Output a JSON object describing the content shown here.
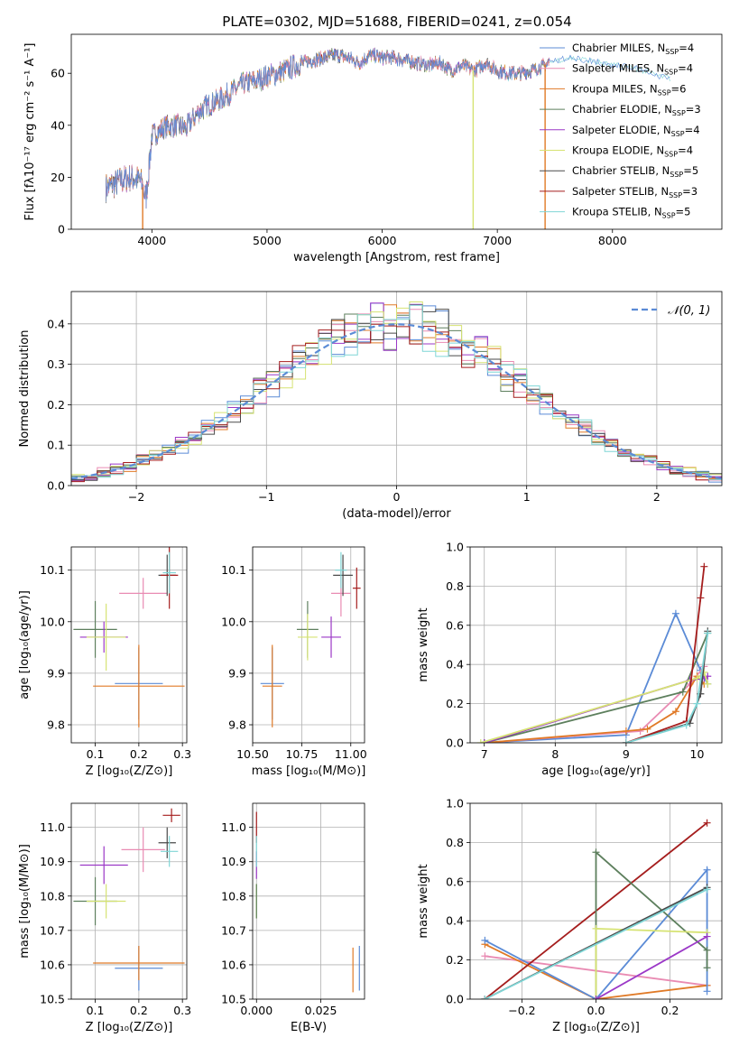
{
  "figure": {
    "title": "PLATE=0302, MJD=51688, FIBERID=0241, z=0.054"
  },
  "colors": {
    "Chabrier MILES": "#5b8bd6",
    "Salpeter MILES": "#e98bb3",
    "Kroupa MILES": "#e07a27",
    "Chabrier ELODIE": "#5d7f5d",
    "Salpeter ELODIE": "#9b38c7",
    "Kroupa ELODIE": "#d6e373",
    "Chabrier STELIB": "#4a4a4a",
    "Salpeter STELIB": "#a51d1d",
    "Kroupa STELIB": "#7fd6d6"
  },
  "chart_data": [
    {
      "id": "spectrum",
      "type": "line",
      "title": "PLATE=0302, MJD=51688, FIBERID=0241, z=0.054",
      "xlabel": "wavelength [Angstrom, rest frame]",
      "ylabel": "Flux [fλ10⁻¹⁷ erg cm⁻² s⁻¹ A⁻¹]",
      "xlim": [
        3300,
        8950
      ],
      "ylim": [
        0,
        75
      ],
      "xticks": [
        4000,
        5000,
        6000,
        7000,
        8000
      ],
      "yticks": [
        0,
        20,
        40,
        60
      ],
      "grid": false,
      "legend_position": "top-right",
      "legend": [
        "Chabrier MILES, N_SSP=4",
        "Salpeter MILES, N_SSP=4",
        "Kroupa MILES, N_SSP=6",
        "Chabrier ELODIE, N_SSP=3",
        "Salpeter ELODIE, N_SSP=4",
        "Kroupa ELODIE, N_SSP=4",
        "Chabrier STELIB, N_SSP=5",
        "Salpeter STELIB, N_SSP=3",
        "Kroupa STELIB, N_SSP=5"
      ],
      "continuum": {
        "x": [
          3600,
          3700,
          3800,
          3900,
          3950,
          4000,
          4100,
          4200,
          4300,
          4400,
          4500,
          4600,
          4700,
          4800,
          4900,
          5000,
          5100,
          5200,
          5300,
          5400,
          5500,
          5600,
          5700,
          5800,
          5900,
          6000,
          6100,
          6200,
          6300,
          6400,
          6500,
          6600,
          6700,
          6800,
          6900,
          7000,
          7100,
          7200,
          7300,
          7400,
          7450
        ],
        "y": [
          16,
          18,
          20,
          19,
          12,
          36,
          39,
          40,
          39,
          45,
          48,
          50,
          53,
          56,
          57,
          59,
          60,
          62,
          64,
          65,
          66,
          67,
          66,
          64,
          67,
          66,
          66,
          65,
          64,
          63,
          64,
          61,
          63,
          61,
          64,
          61,
          60,
          60,
          61,
          63,
          64
        ]
      },
      "kroupa_stelib_extension": {
        "x": [
          7450,
          7600,
          7800,
          8000,
          8200,
          8400,
          8500
        ],
        "y": [
          64,
          66,
          65,
          63,
          62,
          59,
          58
        ]
      },
      "spikes_to_zero": [
        3920,
        6790,
        7415
      ]
    },
    {
      "id": "residuals",
      "type": "histogram",
      "xlabel": "(data-model)/error",
      "ylabel": "Normed distribution",
      "xlim": [
        -2.5,
        2.5
      ],
      "ylim": [
        0,
        0.48
      ],
      "xticks": [
        -2,
        -1,
        0,
        1,
        2
      ],
      "yticks": [
        0.0,
        0.1,
        0.2,
        0.3,
        0.4
      ],
      "grid": true,
      "legend_position": "top-right",
      "legend": [
        "𝒩(0, 1)"
      ],
      "bin_width": 0.1,
      "reference_curve": "gaussian N(0,1)"
    },
    {
      "id": "age_vs_Z",
      "type": "scatter",
      "xlabel": "Z [log₁₀(Z/Z⊙)]",
      "ylabel": "age  [log₁₀(age/yr)]",
      "xlim": [
        0.045,
        0.31
      ],
      "ylim": [
        9.765,
        10.145
      ],
      "xticks": [
        0.1,
        0.2,
        0.3
      ],
      "yticks": [
        9.8,
        9.9,
        10.0,
        10.1
      ],
      "grid": true,
      "points": [
        {
          "model": "Chabrier MILES",
          "x": 0.2,
          "xerr": 0.055,
          "y": 9.88,
          "yerr": 0.07
        },
        {
          "model": "Salpeter MILES",
          "x": 0.21,
          "xerr": 0.055,
          "y": 10.055,
          "yerr": 0.03
        },
        {
          "model": "Kroupa MILES",
          "x": 0.2,
          "xerr": 0.105,
          "y": 9.875,
          "yerr": 0.08
        },
        {
          "model": "Chabrier ELODIE",
          "x": 0.1,
          "xerr": 0.05,
          "y": 9.985,
          "yerr": 0.055
        },
        {
          "model": "Salpeter ELODIE",
          "x": 0.12,
          "xerr": 0.055,
          "y": 9.97,
          "yerr": 0.03
        },
        {
          "model": "Kroupa ELODIE",
          "x": 0.125,
          "xerr": 0.045,
          "y": 9.97,
          "yerr": 0.065
        },
        {
          "model": "Chabrier STELIB",
          "x": 0.265,
          "xerr": 0.02,
          "y": 10.09,
          "yerr": 0.04
        },
        {
          "model": "Salpeter STELIB",
          "x": 0.27,
          "xerr": 0.02,
          "y": 10.09,
          "yerr": 0.065
        },
        {
          "model": "Kroupa STELIB",
          "x": 0.27,
          "xerr": 0.015,
          "y": 10.095,
          "yerr": 0.04
        }
      ]
    },
    {
      "id": "age_vs_mass",
      "type": "scatter",
      "xlabel": "mass [log₁₀(M/M⊙)]",
      "ylabel": "",
      "xlim": [
        10.5,
        11.07
      ],
      "ylim": [
        9.765,
        10.145
      ],
      "xticks": [
        10.5,
        10.75,
        11.0
      ],
      "xticklabels": [
        "10.50",
        "10.75",
        "11.00"
      ],
      "yticks": [
        9.8,
        9.9,
        10.0,
        10.1
      ],
      "grid": true,
      "points": [
        {
          "model": "Chabrier MILES",
          "x": 10.6,
          "xerr": 0.06,
          "y": 9.88,
          "yerr": 0.07
        },
        {
          "model": "Salpeter MILES",
          "x": 10.95,
          "xerr": 0.05,
          "y": 10.055,
          "yerr": 0.045
        },
        {
          "model": "Kroupa MILES",
          "x": 10.6,
          "xerr": 0.05,
          "y": 9.875,
          "yerr": 0.08
        },
        {
          "model": "Chabrier ELODIE",
          "x": 10.78,
          "xerr": 0.055,
          "y": 9.985,
          "yerr": 0.055
        },
        {
          "model": "Salpeter ELODIE",
          "x": 10.9,
          "xerr": 0.05,
          "y": 9.97,
          "yerr": 0.04
        },
        {
          "model": "Kroupa ELODIE",
          "x": 10.78,
          "xerr": 0.05,
          "y": 9.97,
          "yerr": 0.045
        },
        {
          "model": "Chabrier STELIB",
          "x": 10.96,
          "xerr": 0.05,
          "y": 10.09,
          "yerr": 0.04
        },
        {
          "model": "Salpeter STELIB",
          "x": 11.03,
          "xerr": 0.02,
          "y": 10.065,
          "yerr": 0.04
        },
        {
          "model": "Kroupa STELIB",
          "x": 10.95,
          "xerr": 0.03,
          "y": 10.1,
          "yerr": 0.035
        }
      ]
    },
    {
      "id": "weight_vs_age",
      "type": "line",
      "xlabel": "age  [log₁₀(age/yr)]",
      "ylabel": "mass weight",
      "xlim": [
        6.8,
        10.35
      ],
      "ylim": [
        0,
        1.0
      ],
      "xticks": [
        7,
        8,
        9,
        10
      ],
      "yticks": [
        0.0,
        0.2,
        0.4,
        0.6,
        0.8,
        1.0
      ],
      "grid": true,
      "series": [
        {
          "model": "Chabrier MILES",
          "x": [
            7.0,
            9.0,
            9.7,
            10.05,
            10.15
          ],
          "y": [
            0.0,
            0.04,
            0.66,
            0.37,
            0.3
          ]
        },
        {
          "model": "Salpeter MILES",
          "x": [
            7.0,
            9.2,
            9.9,
            10.1
          ],
          "y": [
            0.0,
            0.06,
            0.3,
            0.39
          ]
        },
        {
          "model": "Kroupa MILES",
          "x": [
            7.0,
            9.0,
            9.3,
            9.7,
            10.0,
            10.1
          ],
          "y": [
            0.0,
            0.06,
            0.07,
            0.16,
            0.34,
            0.3
          ]
        },
        {
          "model": "Chabrier ELODIE",
          "x": [
            7.0,
            9.8,
            10.15
          ],
          "y": [
            0.0,
            0.26,
            0.56
          ]
        },
        {
          "model": "Salpeter ELODIE",
          "x": [
            7.0,
            9.9,
            10.1,
            10.15
          ],
          "y": [
            0.0,
            0.32,
            0.33,
            0.34
          ]
        },
        {
          "model": "Kroupa ELODIE",
          "x": [
            6.95,
            10.0,
            10.1,
            10.15
          ],
          "y": [
            0.0,
            0.33,
            0.36,
            0.3
          ]
        },
        {
          "model": "Chabrier STELIB",
          "x": [
            9.0,
            9.9,
            10.05,
            10.15
          ],
          "y": [
            0.0,
            0.1,
            0.25,
            0.57
          ]
        },
        {
          "model": "Salpeter STELIB",
          "x": [
            9.0,
            9.85,
            10.05,
            10.1
          ],
          "y": [
            0.0,
            0.11,
            0.74,
            0.9
          ]
        },
        {
          "model": "Kroupa STELIB",
          "x": [
            9.0,
            9.85,
            10.0,
            10.15
          ],
          "y": [
            0.0,
            0.09,
            0.2,
            0.56
          ]
        }
      ]
    },
    {
      "id": "mass_vs_Z",
      "type": "scatter",
      "xlabel": "Z [log₁₀(Z/Z⊙)]",
      "ylabel": "mass [log₁₀(M/M⊙)]",
      "xlim": [
        0.045,
        0.31
      ],
      "ylim": [
        10.5,
        11.07
      ],
      "xticks": [
        0.1,
        0.2,
        0.3
      ],
      "yticks": [
        10.5,
        10.6,
        10.7,
        10.8,
        10.9,
        11.0
      ],
      "grid": true,
      "points": [
        {
          "model": "Chabrier MILES",
          "x": 0.2,
          "xerr": 0.055,
          "y": 10.59,
          "yerr": 0.065
        },
        {
          "model": "Salpeter MILES",
          "x": 0.21,
          "xerr": 0.05,
          "y": 10.935,
          "yerr": 0.065
        },
        {
          "model": "Kroupa MILES",
          "x": 0.2,
          "xerr": 0.105,
          "y": 10.605,
          "yerr": 0.05
        },
        {
          "model": "Chabrier ELODIE",
          "x": 0.1,
          "xerr": 0.05,
          "y": 10.785,
          "yerr": 0.07
        },
        {
          "model": "Salpeter ELODIE",
          "x": 0.12,
          "xerr": 0.055,
          "y": 10.89,
          "yerr": 0.055
        },
        {
          "model": "Kroupa ELODIE",
          "x": 0.125,
          "xerr": 0.045,
          "y": 10.785,
          "yerr": 0.05
        },
        {
          "model": "Chabrier STELIB",
          "x": 0.265,
          "xerr": 0.02,
          "y": 10.955,
          "yerr": 0.045
        },
        {
          "model": "Salpeter STELIB",
          "x": 0.275,
          "xerr": 0.02,
          "y": 11.035,
          "yerr": 0.02
        },
        {
          "model": "Kroupa STELIB",
          "x": 0.27,
          "xerr": 0.02,
          "y": 10.93,
          "yerr": 0.045
        }
      ]
    },
    {
      "id": "mass_vs_EBV",
      "type": "scatter",
      "xlabel": "E(B-V)",
      "ylabel": "",
      "xlim": [
        -0.0015,
        0.042
      ],
      "ylim": [
        10.5,
        11.07
      ],
      "xticks": [
        0.0,
        0.025
      ],
      "xticklabels": [
        "0.000",
        "0.025"
      ],
      "yticks": [
        10.5,
        10.6,
        10.7,
        10.8,
        10.9,
        11.0
      ],
      "grid": true,
      "points": [
        {
          "model": "Chabrier MILES",
          "x": 0.04,
          "xerr": 0.0,
          "y": 10.59,
          "yerr": 0.065
        },
        {
          "model": "Kroupa MILES",
          "x": 0.0375,
          "xerr": 0.0,
          "y": 10.585,
          "yerr": 0.065
        },
        {
          "model": "Salpeter ELODIE",
          "x": 0.0,
          "xerr": 0.0,
          "y": 10.89,
          "yerr": 0.04
        },
        {
          "model": "Kroupa ELODIE",
          "x": 0.0,
          "xerr": 0.0,
          "y": 10.785,
          "yerr": 0.05
        },
        {
          "model": "Chabrier ELODIE",
          "x": 0.0,
          "xerr": 0.0,
          "y": 10.785,
          "yerr": 0.05
        },
        {
          "model": "Salpeter STELIB",
          "x": 0.0,
          "xerr": 0.0,
          "y": 11.0,
          "yerr": 0.045
        },
        {
          "model": "Kroupa STELIB",
          "x": 0.0,
          "xerr": 0.0,
          "y": 10.93,
          "yerr": 0.045
        }
      ]
    },
    {
      "id": "weight_vs_Z",
      "type": "line",
      "xlabel": "Z [log₁₀(Z/Z⊙)]",
      "ylabel": "mass weight",
      "xlim": [
        -0.34,
        0.34
      ],
      "ylim": [
        0,
        1.0
      ],
      "xticks": [
        -0.2,
        0.0,
        0.2
      ],
      "xticklabels": [
        "−0.2",
        "0.0",
        "0.2"
      ],
      "yticks": [
        0.0,
        0.2,
        0.4,
        0.6,
        0.8,
        1.0
      ],
      "grid": true,
      "series": [
        {
          "model": "Salpeter MILES",
          "x": [
            -0.3,
            0.3
          ],
          "y": [
            0.22,
            0.07
          ]
        },
        {
          "model": "Kroupa MILES",
          "x": [
            -0.3,
            0.0,
            0.3
          ],
          "y": [
            0.28,
            0.0,
            0.07
          ]
        },
        {
          "model": "Chabrier MILES",
          "x": [
            -0.3,
            0.0,
            0.3,
            0.3
          ],
          "y": [
            0.3,
            0.0,
            0.66,
            0.04
          ]
        },
        {
          "model": "Salpeter STELIB",
          "x": [
            -0.3,
            0.3
          ],
          "y": [
            0.0,
            0.9
          ]
        },
        {
          "model": "Chabrier ELODIE",
          "x": [
            0.0,
            0.0,
            0.3,
            0.3
          ],
          "y": [
            0.0,
            0.75,
            0.25,
            0.16
          ]
        },
        {
          "model": "Kroupa ELODIE",
          "x": [
            0.0,
            0.0,
            0.3
          ],
          "y": [
            0.0,
            0.36,
            0.34
          ]
        },
        {
          "model": "Salpeter ELODIE",
          "x": [
            0.0,
            0.3
          ],
          "y": [
            0.0,
            0.32
          ]
        },
        {
          "model": "Chabrier STELIB",
          "x": [
            -0.3,
            0.3
          ],
          "y": [
            0.0,
            0.57
          ]
        },
        {
          "model": "Kroupa STELIB",
          "x": [
            -0.3,
            0.3
          ],
          "y": [
            0.0,
            0.56
          ]
        }
      ]
    }
  ]
}
